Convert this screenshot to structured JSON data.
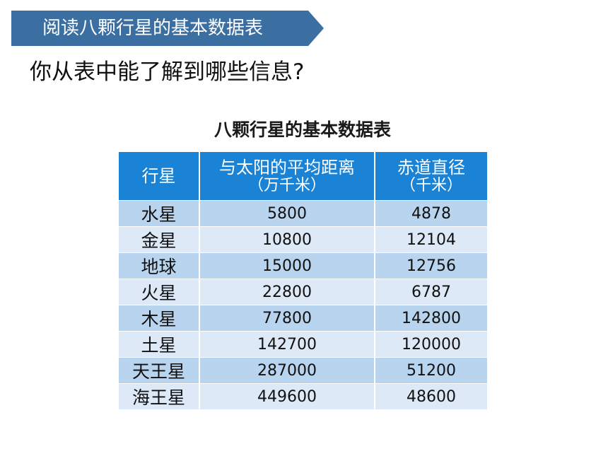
{
  "banner": {
    "title": "阅读八颗行星的基本数据表"
  },
  "question": "你从表中能了解到哪些信息?",
  "table": {
    "title": "八颗行星的基本数据表",
    "headers": {
      "planet": "行星",
      "distance": "与太阳的平均距离",
      "distance_unit": "（万千米）",
      "diameter": "赤道直径",
      "diameter_unit": "（千米）"
    },
    "rows": [
      {
        "planet": "水星",
        "distance": "5800",
        "diameter": "4878"
      },
      {
        "planet": "金星",
        "distance": "10800",
        "diameter": "12104"
      },
      {
        "planet": "地球",
        "distance": "15000",
        "diameter": "12756"
      },
      {
        "planet": "火星",
        "distance": "22800",
        "diameter": "6787"
      },
      {
        "planet": "木星",
        "distance": "77800",
        "diameter": "142800"
      },
      {
        "planet": "土星",
        "distance": "142700",
        "diameter": "120000"
      },
      {
        "planet": "天王星",
        "distance": "287000",
        "diameter": "51200"
      },
      {
        "planet": "海王星",
        "distance": "449600",
        "diameter": "48600"
      }
    ]
  },
  "colors": {
    "banner": "#3b6fa2",
    "header": "#1a83d6",
    "row_dark": "#b8d4ee",
    "row_light": "#dde9f6"
  }
}
